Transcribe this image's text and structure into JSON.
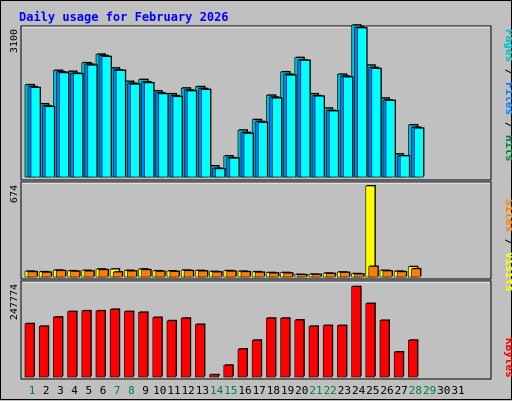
{
  "title": "Daily usage for February 2026",
  "legend": {
    "top": [
      {
        "text": "Pages",
        "color": "#00c0c0"
      },
      {
        "text": " / ",
        "color": "#000000"
      },
      {
        "text": "Files",
        "color": "#0080ff"
      },
      {
        "text": " / ",
        "color": "#000000"
      },
      {
        "text": "Hits",
        "color": "#008040"
      }
    ],
    "middle": [
      {
        "text": "Sites",
        "color": "#ff8000"
      },
      {
        "text": " / ",
        "color": "#000000"
      },
      {
        "text": "Visits",
        "color": "#ffff00"
      }
    ],
    "bottom": [
      {
        "text": "KBytes",
        "color": "#ff0000"
      }
    ]
  },
  "chart_data": [
    {
      "type": "bar",
      "title": "Daily usage for February 2026",
      "categories": [
        "1",
        "2",
        "3",
        "4",
        "5",
        "6",
        "7",
        "8",
        "9",
        "10",
        "11",
        "12",
        "13",
        "14",
        "15",
        "16",
        "17",
        "18",
        "19",
        "20",
        "21",
        "22",
        "23",
        "24",
        "25",
        "26",
        "27",
        "28",
        "29",
        "30",
        "31"
      ],
      "y_tick_labels": [
        "3100"
      ],
      "ylim": [
        0,
        3100
      ],
      "series": [
        {
          "name": "Hits",
          "color": "#00c0c0",
          "values": [
            1930,
            1530,
            2230,
            2210,
            2390,
            2570,
            2280,
            2000,
            2040,
            1800,
            1740,
            1860,
            1890,
            230,
            440,
            980,
            1200,
            1710,
            2200,
            2500,
            1740,
            1440,
            2150,
            3180,
            2340,
            1650,
            480,
            1090,
            0,
            0,
            0
          ]
        },
        {
          "name": "Files",
          "color": "#0080ff",
          "values": [
            1890,
            1490,
            2200,
            2170,
            2360,
            2540,
            2240,
            1960,
            1990,
            1760,
            1700,
            1820,
            1850,
            180,
            400,
            930,
            1160,
            1670,
            2150,
            2450,
            1700,
            1390,
            2110,
            3130,
            2290,
            1610,
            440,
            1040,
            0,
            0,
            0
          ]
        },
        {
          "name": "Pages",
          "color": "#00ffff",
          "values": [
            1870,
            1470,
            2180,
            2160,
            2340,
            2520,
            2230,
            1940,
            1970,
            1740,
            1680,
            1800,
            1830,
            170,
            390,
            910,
            1140,
            1650,
            2130,
            2440,
            1690,
            1380,
            2090,
            3120,
            2270,
            1600,
            440,
            1020,
            0,
            0,
            0
          ]
        }
      ],
      "weekend_days": [
        1,
        7,
        8,
        14,
        15,
        21,
        22,
        28,
        29
      ]
    },
    {
      "type": "bar",
      "categories": [
        "1",
        "2",
        "3",
        "4",
        "5",
        "6",
        "7",
        "8",
        "9",
        "10",
        "11",
        "12",
        "13",
        "14",
        "15",
        "16",
        "17",
        "18",
        "19",
        "20",
        "21",
        "22",
        "23",
        "24",
        "25",
        "26",
        "27",
        "28",
        "29",
        "30",
        "31"
      ],
      "y_tick_labels": [
        "674"
      ],
      "ylim": [
        0,
        674
      ],
      "series": [
        {
          "name": "Visits",
          "color": "#ffff00",
          "values": [
            42,
            38,
            50,
            45,
            48,
            58,
            58,
            48,
            58,
            45,
            44,
            50,
            47,
            40,
            46,
            42,
            38,
            32,
            32,
            18,
            20,
            28,
            36,
            24,
            674,
            48,
            42,
            76,
            0,
            0,
            0
          ]
        },
        {
          "name": "Sites",
          "color": "#ff8000",
          "values": [
            38,
            34,
            46,
            41,
            43,
            53,
            36,
            43,
            53,
            41,
            40,
            46,
            43,
            36,
            42,
            38,
            34,
            28,
            28,
            16,
            18,
            25,
            33,
            21,
            78,
            44,
            38,
            60,
            0,
            0,
            0
          ]
        }
      ]
    },
    {
      "type": "bar",
      "categories": [
        "1",
        "2",
        "3",
        "4",
        "5",
        "6",
        "7",
        "8",
        "9",
        "10",
        "11",
        "12",
        "13",
        "14",
        "15",
        "16",
        "17",
        "18",
        "19",
        "20",
        "21",
        "22",
        "23",
        "24",
        "25",
        "26",
        "27",
        "28",
        "29",
        "30",
        "31"
      ],
      "y_tick_labels": [
        "247774"
      ],
      "ylim": [
        0,
        247774
      ],
      "series": [
        {
          "name": "KBytes",
          "color": "#ff0000",
          "values": [
            145000,
            138000,
            163000,
            178000,
            180000,
            180000,
            184000,
            178000,
            176000,
            162000,
            153000,
            160000,
            143000,
            6000,
            32000,
            76000,
            100000,
            160000,
            160000,
            155000,
            138000,
            140000,
            140000,
            246000,
            200000,
            154000,
            68000,
            100000,
            0,
            0,
            0
          ]
        }
      ]
    }
  ]
}
